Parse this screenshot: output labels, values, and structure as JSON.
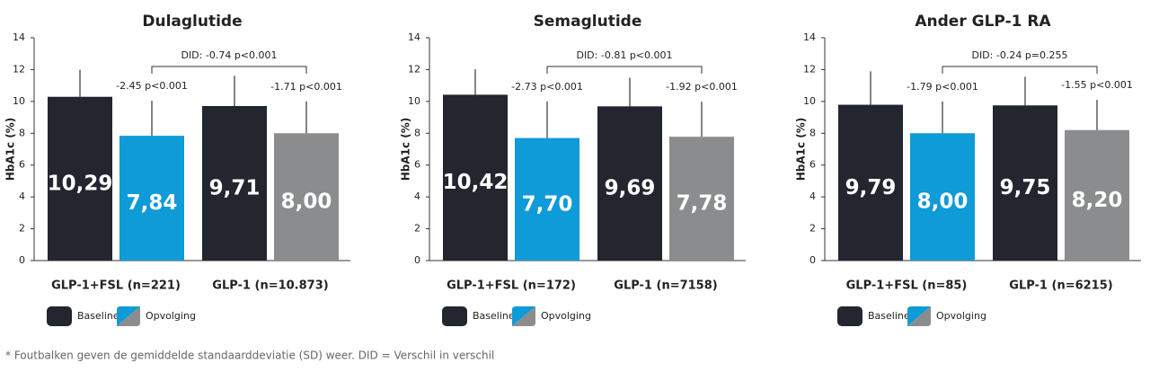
{
  "chart_data": [
    {
      "type": "bar",
      "title": "Dulaglutide",
      "y_label": "HbA1c (%)",
      "categories": [
        "GLP-1+FSL (n=221)",
        "GLP-1 (n=10.873)"
      ],
      "ylim": [
        0,
        14
      ],
      "yticks": [
        0,
        2,
        4,
        6,
        8,
        10,
        12,
        14
      ],
      "series": [
        {
          "name": "Baseline",
          "color": "#23252f",
          "values": [
            10.29,
            9.71
          ],
          "value_labels": [
            "10,29",
            "9,71"
          ],
          "errors": [
            1.7,
            1.9
          ]
        },
        {
          "name": "Opvolging",
          "colors": [
            "#0f9ad8",
            "#8a8c8e"
          ],
          "values": [
            7.84,
            8.0
          ],
          "value_labels": [
            "7,84",
            "8,00"
          ],
          "errors": [
            2.2,
            2.0
          ],
          "annotations": [
            "-2.45 p<0.001",
            "-1.71 p<0.001"
          ]
        }
      ],
      "did_label": "DID: -0.74 p<0.001"
    },
    {
      "type": "bar",
      "title": "Semaglutide",
      "y_label": "HbA1c (%)",
      "categories": [
        "GLP-1+FSL (n=172)",
        "GLP-1 (n=7158)"
      ],
      "ylim": [
        0,
        14
      ],
      "yticks": [
        0,
        2,
        4,
        6,
        8,
        10,
        12,
        14
      ],
      "series": [
        {
          "name": "Baseline",
          "color": "#23252f",
          "values": [
            10.42,
            9.69
          ],
          "value_labels": [
            "10,42",
            "9,69"
          ],
          "errors": [
            1.6,
            1.8
          ]
        },
        {
          "name": "Opvolging",
          "colors": [
            "#0f9ad8",
            "#8a8c8e"
          ],
          "values": [
            7.7,
            7.78
          ],
          "value_labels": [
            "7,70",
            "7,78"
          ],
          "errors": [
            2.3,
            2.2
          ],
          "annotations": [
            "-2.73 p<0.001",
            "-1.92 p<0.001"
          ]
        }
      ],
      "did_label": "DID: -0.81 p<0.001"
    },
    {
      "type": "bar",
      "title": "Ander GLP-1 RA",
      "y_label": "HbA1c (%)",
      "categories": [
        "GLP-1+FSL (n=85)",
        "GLP-1 (n=6215)"
      ],
      "ylim": [
        0,
        14
      ],
      "yticks": [
        0,
        2,
        4,
        6,
        8,
        10,
        12,
        14
      ],
      "series": [
        {
          "name": "Baseline",
          "color": "#23252f",
          "values": [
            9.79,
            9.75
          ],
          "value_labels": [
            "9,79",
            "9,75"
          ],
          "errors": [
            2.1,
            1.8
          ]
        },
        {
          "name": "Opvolging",
          "colors": [
            "#0f9ad8",
            "#8a8c8e"
          ],
          "values": [
            8.0,
            8.2
          ],
          "value_labels": [
            "8,00",
            "8,20"
          ],
          "errors": [
            2.0,
            1.9
          ],
          "annotations": [
            "-1.79 p<0.001",
            "-1.55 p<0.001"
          ]
        }
      ],
      "did_label": "DID: -0.24 p=0.255"
    }
  ],
  "footnote": "* Foutbalken geven de gemiddelde standaarddeviatie (SD) weer. DID = Verschil in verschil"
}
